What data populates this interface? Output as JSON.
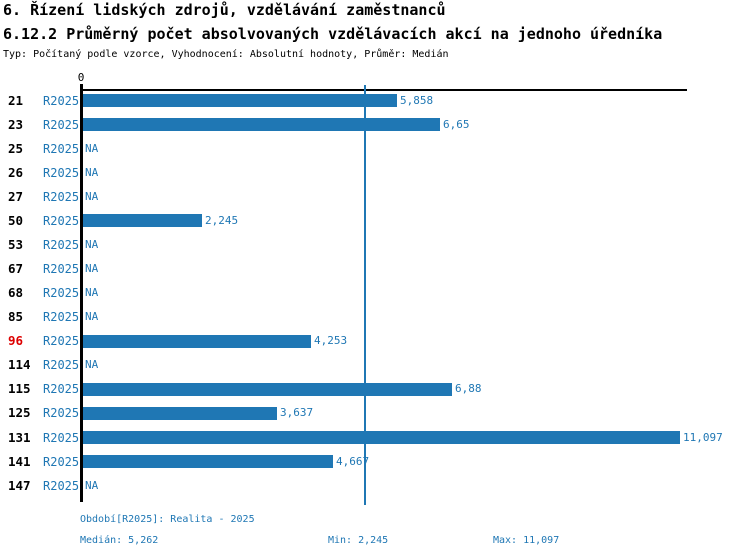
{
  "header": {
    "title_line1": "6. Řízení lidských zdrojů, vzdělávání zaměstnanců",
    "title_line2": "6.12.2 Průměrný počet absolvovaných vzdělávacích akcí na jednoho úředníka",
    "subtitle": "Typ: Počítaný podle vzorce, Vyhodnocení: Absolutní hodnoty, Průměr: Medián"
  },
  "chart_data": {
    "type": "bar",
    "orientation": "horizontal",
    "title": "6.12.2 Průměrný počet absolvovaných vzdělávacích akcí na jednoho úředníka",
    "xlabel": "",
    "ylabel": "",
    "xlim": [
      0,
      11.25
    ],
    "grid": false,
    "axis_origin_label": "0",
    "series_name": "R2025",
    "categories": [
      "21",
      "23",
      "25",
      "26",
      "27",
      "50",
      "53",
      "67",
      "68",
      "85",
      "96",
      "114",
      "115",
      "125",
      "131",
      "141",
      "147"
    ],
    "rows": [
      {
        "org": "21",
        "period": "R2025",
        "value": 5.858,
        "value_label": "5,858",
        "highlight": false
      },
      {
        "org": "23",
        "period": "R2025",
        "value": 6.65,
        "value_label": "6,65",
        "highlight": false
      },
      {
        "org": "25",
        "period": "R2025",
        "value": null,
        "value_label": "NA",
        "highlight": false
      },
      {
        "org": "26",
        "period": "R2025",
        "value": null,
        "value_label": "NA",
        "highlight": false
      },
      {
        "org": "27",
        "period": "R2025",
        "value": null,
        "value_label": "NA",
        "highlight": false
      },
      {
        "org": "50",
        "period": "R2025",
        "value": 2.245,
        "value_label": "2,245",
        "highlight": false
      },
      {
        "org": "53",
        "period": "R2025",
        "value": null,
        "value_label": "NA",
        "highlight": false
      },
      {
        "org": "67",
        "period": "R2025",
        "value": null,
        "value_label": "NA",
        "highlight": false
      },
      {
        "org": "68",
        "period": "R2025",
        "value": null,
        "value_label": "NA",
        "highlight": false
      },
      {
        "org": "85",
        "period": "R2025",
        "value": null,
        "value_label": "NA",
        "highlight": false
      },
      {
        "org": "96",
        "period": "R2025",
        "value": 4.253,
        "value_label": "4,253",
        "highlight": true
      },
      {
        "org": "114",
        "period": "R2025",
        "value": null,
        "value_label": "NA",
        "highlight": false
      },
      {
        "org": "115",
        "period": "R2025",
        "value": 6.88,
        "value_label": "6,88",
        "highlight": false
      },
      {
        "org": "125",
        "period": "R2025",
        "value": 3.637,
        "value_label": "3,637",
        "highlight": false
      },
      {
        "org": "131",
        "period": "R2025",
        "value": 11.097,
        "value_label": "11,097",
        "highlight": false
      },
      {
        "org": "141",
        "period": "R2025",
        "value": 4.667,
        "value_label": "4,667",
        "highlight": false
      },
      {
        "org": "147",
        "period": "R2025",
        "value": null,
        "value_label": "NA",
        "highlight": false
      }
    ],
    "median_value": 5.262,
    "stats": {
      "median": 5.262,
      "min": 2.245,
      "max": 11.097
    },
    "colors": {
      "bar": "#1f77b4",
      "blue_text": "#1f77b4",
      "highlight_text": "#dd0000",
      "axis": "#000000"
    }
  },
  "footer": {
    "period_info": "Období[R2025]: Realita - 2025",
    "median_label": "Medián: 5,262",
    "min_label": "Min: 2,245",
    "max_label": "Max: 11,097"
  }
}
